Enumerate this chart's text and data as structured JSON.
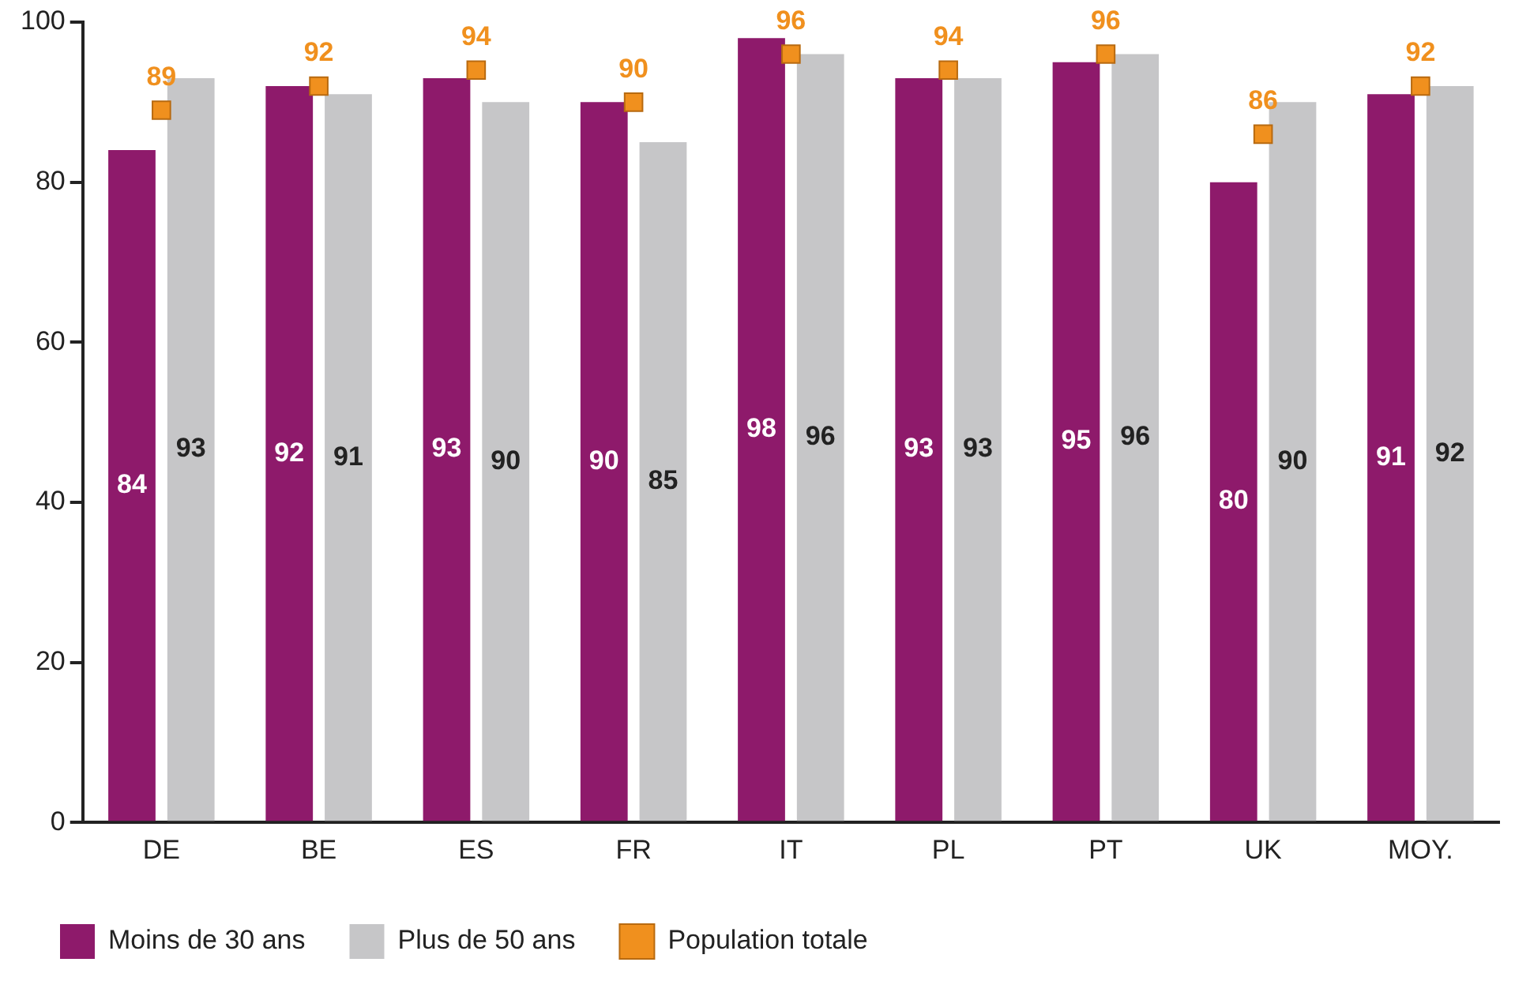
{
  "chart_data": {
    "type": "bar",
    "categories": [
      "DE",
      "BE",
      "ES",
      "FR",
      "IT",
      "PL",
      "PT",
      "UK",
      "MOY."
    ],
    "series": [
      {
        "name": "Moins de 30 ans",
        "color": "#8e1a6b",
        "values": [
          84,
          92,
          93,
          90,
          98,
          93,
          95,
          80,
          91
        ]
      },
      {
        "name": "Plus de 50 ans",
        "color": "#c6c6c8",
        "values": [
          93,
          91,
          90,
          85,
          96,
          93,
          96,
          90,
          92
        ]
      },
      {
        "name": "Population totale",
        "color": "#f0901e",
        "type": "scatter",
        "marker": "square",
        "x": [
          "DE",
          "BE",
          "ES",
          "FR",
          "IT",
          "PL",
          "PT",
          "UK",
          "MOY."
        ],
        "values": [
          89,
          92,
          94,
          90,
          96,
          94,
          96,
          86,
          92
        ]
      }
    ],
    "ylim": [
      0,
      100
    ],
    "yticks": [
      0,
      20,
      40,
      60,
      80,
      100
    ],
    "grid": false,
    "legend": "bottom",
    "data_labels": true
  }
}
